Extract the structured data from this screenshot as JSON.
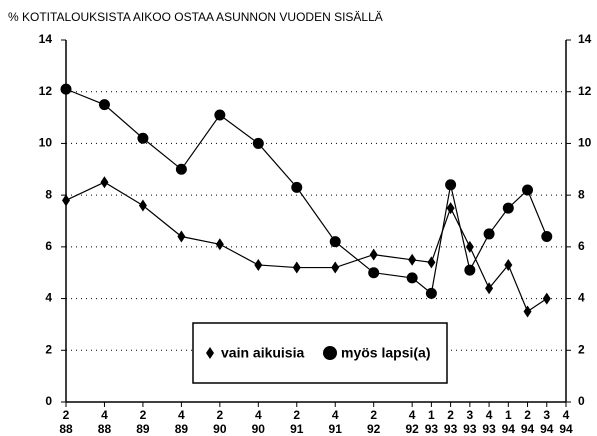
{
  "chart_data": {
    "type": "line",
    "title": "% KOTITALOUKSISTA AIKOO OSTAA ASUNNON VUODEN SISÄLLÄ",
    "categories": [
      [
        "2",
        "88"
      ],
      [
        "4",
        "88"
      ],
      [
        "2",
        "89"
      ],
      [
        "4",
        "89"
      ],
      [
        "2",
        "90"
      ],
      [
        "4",
        "90"
      ],
      [
        "2",
        "91"
      ],
      [
        "4",
        "91"
      ],
      [
        "2",
        "92"
      ],
      [
        "4",
        "92"
      ],
      [
        "1",
        "93"
      ],
      [
        "2",
        "93"
      ],
      [
        "3",
        "93"
      ],
      [
        "4",
        "93"
      ],
      [
        "1",
        "94"
      ],
      [
        "2",
        "94"
      ],
      [
        "3",
        "94"
      ],
      [
        "4",
        "94"
      ]
    ],
    "series": [
      {
        "name": "vain aikuisia",
        "color": "#000000",
        "marker": "diamond",
        "values": [
          7.8,
          8.5,
          7.6,
          6.4,
          6.1,
          5.3,
          5.2,
          5.2,
          5.7,
          5.5,
          5.4,
          7.5,
          6.0,
          4.4,
          5.3,
          3.5,
          4.0,
          null
        ]
      },
      {
        "name": "myös lapsi(a)",
        "color": "#000000",
        "marker": "circle",
        "values": [
          12.1,
          11.5,
          10.2,
          9.0,
          11.1,
          10.0,
          8.3,
          6.2,
          5.0,
          4.8,
          4.2,
          8.4,
          5.1,
          6.5,
          7.5,
          8.2,
          6.4,
          null
        ]
      }
    ],
    "ylim": [
      0,
      14
    ],
    "yticks": [
      0,
      2,
      4,
      6,
      8,
      10,
      12,
      14
    ],
    "y2lim": [
      0,
      14
    ],
    "y2ticks": [
      0,
      2,
      4,
      6,
      8,
      10,
      12,
      14
    ],
    "grid": true
  }
}
